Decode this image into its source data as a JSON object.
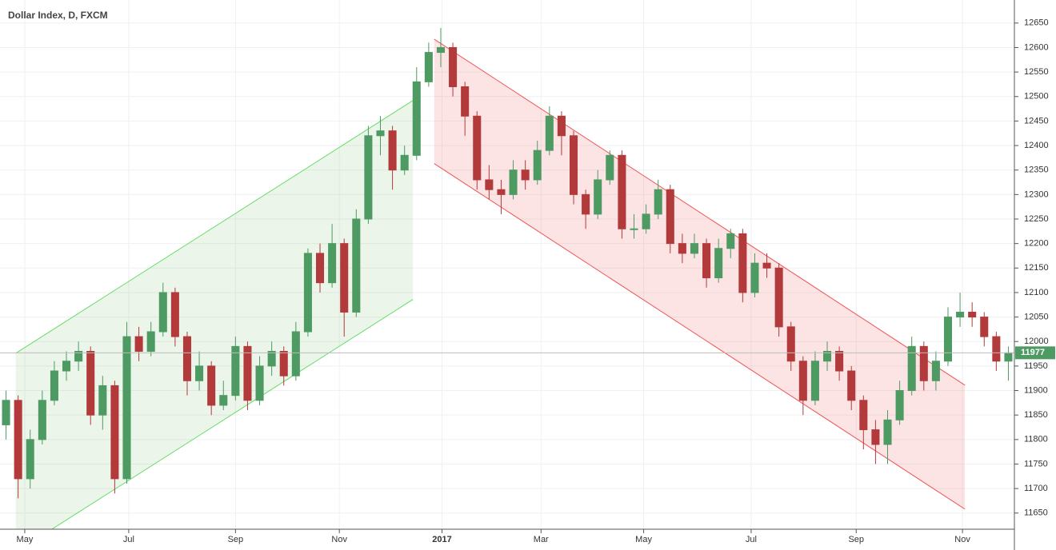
{
  "chart_data": {
    "type": "candlestick",
    "title": "Dollar Index, D, FXCM",
    "up_color": "#4e9a63",
    "down_color": "#b33a3a",
    "grid": true,
    "xlim": [
      0,
      84
    ],
    "xticks": [
      {
        "value": 2.05,
        "label": "May"
      },
      {
        "value": 10.66,
        "label": "Jul"
      },
      {
        "value": 19.5,
        "label": "Sep"
      },
      {
        "value": 28.1,
        "label": "Nov"
      },
      {
        "value": 36.6,
        "label": "2017"
      },
      {
        "value": 44.8,
        "label": "Mar"
      },
      {
        "value": 53.3,
        "label": "May"
      },
      {
        "value": 62.2,
        "label": "Jul"
      },
      {
        "value": 70.9,
        "label": "Sep"
      },
      {
        "value": 79.7,
        "label": "Nov"
      }
    ],
    "ylim": [
      11617,
      12697
    ],
    "yticks": [
      11650,
      11700,
      11750,
      11800,
      11850,
      11900,
      11950,
      12000,
      12050,
      12100,
      12150,
      12200,
      12250,
      12300,
      12350,
      12400,
      12450,
      12500,
      12550,
      12600,
      12650
    ],
    "open": [
      11830,
      11880,
      11720,
      11800,
      11880,
      11940,
      11960,
      11980,
      11850,
      11910,
      11720,
      12010,
      11980,
      12020,
      12100,
      12010,
      11920,
      11950,
      11870,
      11890,
      11990,
      11880,
      11950,
      11980,
      11930,
      12020,
      12180,
      12120,
      12200,
      12060,
      12250,
      12420,
      12430,
      12350,
      12380,
      12530,
      12590,
      12600,
      12520,
      12460,
      12330,
      12310,
      12300,
      12350,
      12330,
      12390,
      12460,
      12420,
      12300,
      12260,
      12330,
      12380,
      12230,
      12230,
      12260,
      12310,
      12200,
      12180,
      12200,
      12130,
      12190,
      12220,
      12100,
      12160,
      12150,
      12030,
      11960,
      11880,
      11960,
      11980,
      11940,
      11880,
      11820,
      11790,
      11840,
      11900,
      11990,
      11920,
      11960,
      12050,
      12060,
      12050,
      12010,
      11960
    ],
    "high": [
      11900,
      11890,
      11820,
      11900,
      11960,
      11980,
      12000,
      11990,
      11930,
      11920,
      12040,
      12030,
      12040,
      12120,
      12110,
      12020,
      11980,
      11960,
      11920,
      12010,
      12000,
      11970,
      12000,
      11990,
      12040,
      12190,
      12200,
      12240,
      12210,
      12270,
      12440,
      12460,
      12440,
      12400,
      12560,
      12610,
      12640,
      12610,
      12530,
      12470,
      12360,
      12330,
      12370,
      12370,
      12410,
      12480,
      12470,
      12430,
      12310,
      12350,
      12390,
      12390,
      12260,
      12280,
      12330,
      12320,
      12220,
      12220,
      12210,
      12210,
      12230,
      12230,
      12180,
      12180,
      12160,
      12040,
      11970,
      11980,
      12000,
      11990,
      11950,
      11890,
      11840,
      11860,
      11920,
      12010,
      12000,
      11980,
      12070,
      12100,
      12080,
      12060,
      12020,
      11990
    ],
    "low": [
      11800,
      11680,
      11700,
      11790,
      11870,
      11920,
      11940,
      11830,
      11820,
      11690,
      11710,
      11960,
      11970,
      12010,
      11990,
      11890,
      11900,
      11850,
      11860,
      11880,
      11860,
      11870,
      11930,
      11910,
      11920,
      12010,
      12100,
      12110,
      12010,
      12050,
      12240,
      12380,
      12310,
      12340,
      12370,
      12520,
      12560,
      12500,
      12420,
      12310,
      12290,
      12260,
      12290,
      12310,
      12320,
      12380,
      12380,
      12280,
      12230,
      12250,
      12320,
      12210,
      12210,
      12220,
      12250,
      12180,
      12160,
      12170,
      12110,
      12120,
      12170,
      12080,
      12090,
      12130,
      12010,
      11940,
      11850,
      11870,
      11940,
      11920,
      11860,
      11780,
      11750,
      11750,
      11830,
      11890,
      11900,
      11900,
      11950,
      12030,
      12030,
      11990,
      11940,
      11920
    ],
    "close": [
      11880,
      11720,
      11800,
      11880,
      11940,
      11960,
      11980,
      11850,
      11910,
      11720,
      12010,
      11980,
      12020,
      12100,
      12010,
      11920,
      11950,
      11870,
      11890,
      11990,
      11880,
      11950,
      11980,
      11930,
      12020,
      12180,
      12120,
      12200,
      12060,
      12250,
      12420,
      12430,
      12350,
      12380,
      12530,
      12590,
      12600,
      12520,
      12460,
      12330,
      12310,
      12300,
      12350,
      12330,
      12390,
      12460,
      12420,
      12300,
      12260,
      12330,
      12380,
      12230,
      12230,
      12260,
      12310,
      12200,
      12180,
      12200,
      12130,
      12190,
      12220,
      12100,
      12160,
      12150,
      12030,
      11960,
      11880,
      11960,
      11980,
      11940,
      11880,
      11820,
      11790,
      11840,
      11900,
      11990,
      11920,
      11960,
      12050,
      12060,
      12050,
      12010,
      11960,
      11977
    ],
    "last_price_color": "#4e9a63",
    "channels": [
      {
        "color": "#66dd66",
        "fill": "rgba(120,190,110,0.15)",
        "x": [
          1.3,
          34.2
        ],
        "upper": [
          11976,
          12492
        ],
        "lower": [
          11570,
          12086
        ]
      },
      {
        "color": "#ee5555",
        "fill": "rgba(240,120,120,0.2)",
        "x": [
          35.96,
          79.9
        ],
        "upper": [
          12617,
          11911
        ],
        "lower": [
          12363,
          11658
        ]
      }
    ]
  }
}
